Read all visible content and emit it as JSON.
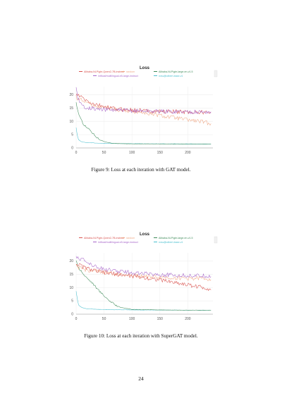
{
  "page": {
    "captions": [
      "Figure 9: Loss at each iteration with GAT model.",
      "Figure 10: Loss at each iteration with SuperGAT model."
    ],
    "page_number": "24"
  },
  "chart_data": [
    {
      "type": "line",
      "title": "Loss",
      "xlabel": "",
      "ylabel": "",
      "xlim": [
        0,
        245
      ],
      "ylim": [
        0,
        23
      ],
      "xticks": [
        0,
        50,
        100,
        150,
        200
      ],
      "yticks": [
        0,
        5,
        10,
        15,
        20
      ],
      "grid": true,
      "legend_position": "top",
      "series": [
        {
          "name": "Alibaba-NLP/gte-Qwen2-7B-instruct",
          "color": "#d9534f",
          "x": [
            0,
            5,
            10,
            20,
            30,
            40,
            60,
            80,
            100,
            120,
            140,
            160,
            180,
            200,
            220,
            240
          ],
          "values": [
            20,
            19.5,
            19,
            17.5,
            16.5,
            16,
            15,
            14.5,
            14.2,
            14,
            13.8,
            13.7,
            13.6,
            13.5,
            13.4,
            13.3
          ]
        },
        {
          "name": "random",
          "color": "#f0a987",
          "x": [
            0,
            5,
            10,
            20,
            30,
            40,
            60,
            80,
            100,
            120,
            140,
            160,
            180,
            200,
            220,
            240
          ],
          "values": [
            19,
            18.5,
            18,
            17,
            16.2,
            15.5,
            14.8,
            14.2,
            13.8,
            13.2,
            12.5,
            11.8,
            11.2,
            10.5,
            10,
            9.2
          ]
        },
        {
          "name": "Alibaba-NLP/gte-large-en-v1.5",
          "color": "#3d8a58",
          "x": [
            0,
            3,
            6,
            10,
            15,
            20,
            25,
            30,
            35,
            40,
            45,
            50,
            55,
            60,
            70,
            80,
            100,
            150,
            200,
            240
          ],
          "values": [
            17,
            14,
            12,
            10,
            8.5,
            7.5,
            6.8,
            5.5,
            4.5,
            3.5,
            2.9,
            2.4,
            2.1,
            1.9,
            1.7,
            1.6,
            1.55,
            1.5,
            1.45,
            1.45
          ]
        },
        {
          "name": "intfloat/multilingual-e5-large-instruct",
          "color": "#a766c9",
          "x": [
            0,
            3,
            6,
            10,
            15,
            20,
            30,
            40,
            60,
            80,
            100,
            120,
            140,
            160,
            180,
            200,
            220,
            240
          ],
          "values": [
            23,
            19,
            17,
            16,
            15.5,
            15.2,
            14.8,
            14.5,
            14.3,
            14.1,
            14,
            13.9,
            13.8,
            13.7,
            13.6,
            13.6,
            13.5,
            13.5
          ]
        },
        {
          "name": "nvso/jhotbert-base-v1",
          "color": "#49bfcf",
          "x": [
            0,
            2,
            4,
            6,
            8,
            10,
            15,
            20,
            30,
            40,
            60,
            100,
            150,
            200,
            240
          ],
          "values": [
            8,
            4.5,
            3.2,
            2.8,
            2.5,
            2.3,
            2.1,
            2,
            1.9,
            1.8,
            1.7,
            1.6,
            1.55,
            1.5,
            1.5
          ]
        }
      ]
    },
    {
      "type": "line",
      "title": "Loss",
      "xlabel": "",
      "ylabel": "",
      "xlim": [
        0,
        245
      ],
      "ylim": [
        0,
        23
      ],
      "xticks": [
        0,
        50,
        100,
        150,
        200
      ],
      "yticks": [
        0,
        5,
        10,
        15,
        20
      ],
      "grid": true,
      "legend_position": "top",
      "series": [
        {
          "name": "Alibaba-NLP/gte-Qwen2-7B-instruct",
          "color": "#d9534f",
          "x": [
            0,
            5,
            10,
            20,
            30,
            40,
            60,
            80,
            100,
            120,
            140,
            160,
            180,
            200,
            220,
            240
          ],
          "values": [
            19,
            18.5,
            18,
            17.2,
            16.5,
            16,
            15.3,
            14.8,
            14.3,
            13.8,
            13.2,
            12.5,
            11.8,
            11,
            10.3,
            9.5
          ]
        },
        {
          "name": "random",
          "color": "#f0a987",
          "x": [
            0,
            5,
            10,
            20,
            30,
            40,
            60,
            80,
            100,
            120,
            140,
            160,
            180,
            200,
            220,
            240
          ],
          "values": [
            18,
            17.5,
            17,
            16.5,
            16.2,
            15.8,
            15.4,
            15,
            14.6,
            14.3,
            14,
            13.8,
            13.6,
            13.5,
            13.4,
            13.3
          ]
        },
        {
          "name": "Alibaba-NLP/gte-large-en-v1.5",
          "color": "#3d8a58",
          "x": [
            0,
            3,
            6,
            10,
            15,
            20,
            25,
            30,
            40,
            50,
            60,
            70,
            80,
            100,
            150,
            200,
            240
          ],
          "values": [
            20,
            18,
            17,
            16,
            14.5,
            13.5,
            12.5,
            11.5,
            9,
            7,
            5,
            3.5,
            2.5,
            1.8,
            1.6,
            1.5,
            1.5
          ]
        },
        {
          "name": "intfloat/multilingual-e5-large-instruct",
          "color": "#a766c9",
          "x": [
            0,
            5,
            10,
            20,
            30,
            40,
            60,
            80,
            100,
            120,
            140,
            160,
            180,
            200,
            220,
            240
          ],
          "values": [
            22,
            21,
            20.5,
            19.5,
            18.5,
            17.5,
            16.5,
            16,
            15.6,
            15.3,
            15,
            14.8,
            14.6,
            14.5,
            14.4,
            14.3
          ]
        },
        {
          "name": "nvso/jhotbert-base-v1",
          "color": "#49bfcf",
          "x": [
            0,
            2,
            4,
            6,
            8,
            10,
            15,
            20,
            30,
            40,
            60,
            100,
            150,
            200,
            240
          ],
          "values": [
            9,
            6,
            4,
            3.3,
            2.8,
            2.5,
            2.2,
            2,
            1.9,
            1.8,
            1.7,
            1.6,
            1.55,
            1.5,
            1.5
          ]
        }
      ]
    }
  ]
}
